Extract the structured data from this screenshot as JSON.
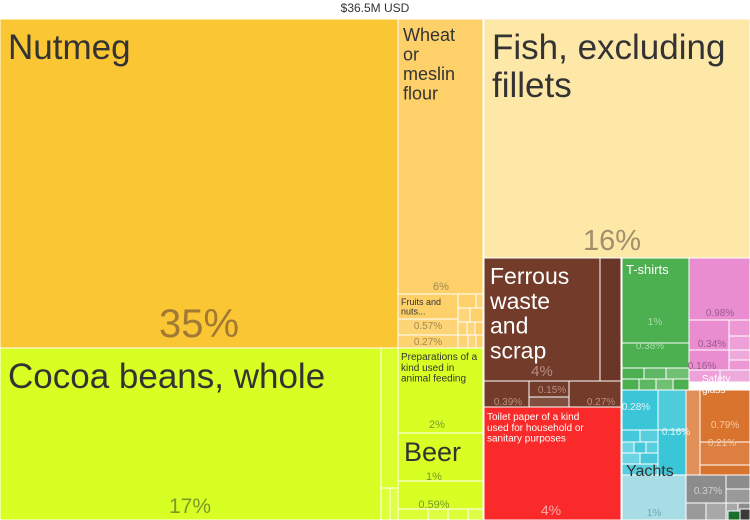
{
  "total_label": "$36.5M USD",
  "chart_data": {
    "type": "treemap",
    "title": "$36.5M USD",
    "categories": [
      {
        "name": "Nutmeg",
        "share": 35,
        "share_label": "35%",
        "color": "#fbc634"
      },
      {
        "name": "Cocoa beans, whole",
        "share": 17,
        "share_label": "17%",
        "color": "#d8ff24"
      },
      {
        "name": "Wheat or meslin flour",
        "share": 6,
        "share_label": "6%",
        "color": "#fdd06a"
      },
      {
        "name": "Fruits and nuts...",
        "share": 0.57,
        "share_label": "0.57%",
        "color": "#fdd06a"
      },
      {
        "name": "",
        "share": 0.27,
        "share_label": "0.27%",
        "color": "#fdd06a"
      },
      {
        "name": "Preparations of a kind used in animal feeding",
        "share": 2,
        "share_label": "2%",
        "color": "#d8ff24"
      },
      {
        "name": "Beer",
        "share": 1,
        "share_label": "1%",
        "color": "#d8ff24"
      },
      {
        "name": "",
        "share": 0.59,
        "share_label": "0.59%",
        "color": "#d8ff24"
      },
      {
        "name": "Fish, excluding fillets",
        "share": 16,
        "share_label": "16%",
        "color": "#fde8a8"
      },
      {
        "name": "Ferrous waste and scrap",
        "share": 4,
        "share_label": "4%",
        "color": "#723b2a"
      },
      {
        "name": "",
        "share": 0.39,
        "share_label": "0.39%",
        "color": "#723b2a"
      },
      {
        "name": "",
        "share": 0.15,
        "share_label": "0.15%",
        "color": "#723b2a"
      },
      {
        "name": "",
        "share": 0.27,
        "share_label": "0.27%",
        "color": "#723b2a"
      },
      {
        "name": "Toilet paper of a kind used for household or sanitary purposes",
        "share": 4,
        "share_label": "4%",
        "color": "#fb2a2a"
      },
      {
        "name": "T-shirts",
        "share": 1,
        "share_label": "1%",
        "color": "#4caf50"
      },
      {
        "name": "",
        "share": 0.38,
        "share_label": "0.38%",
        "color": "#4caf50"
      },
      {
        "name": "",
        "share": 0.98,
        "share_label": "0.98%",
        "color": "#e98cd0"
      },
      {
        "name": "",
        "share": 0.34,
        "share_label": "0.34%",
        "color": "#e98cd0"
      },
      {
        "name": "",
        "share": 0.16,
        "share_label": "0.16%",
        "color": "#e98cd0"
      },
      {
        "name": "",
        "share": 0.28,
        "share_label": "0.28%",
        "color": "#3bc6d8"
      },
      {
        "name": "",
        "share": 0.16,
        "share_label": "0.16%",
        "color": "#3bc6d8"
      },
      {
        "name": "Safety glass",
        "share": 0.79,
        "share_label": "0.79%",
        "color": "#d9742f"
      },
      {
        "name": "",
        "share": 0.21,
        "share_label": "0.21%",
        "color": "#d9742f"
      },
      {
        "name": "Yachts",
        "share": 1,
        "share_label": "1%",
        "color": "#a8dde6"
      },
      {
        "name": "",
        "share": 0.37,
        "share_label": "0.37%",
        "color": "#8c8c8c"
      }
    ]
  }
}
